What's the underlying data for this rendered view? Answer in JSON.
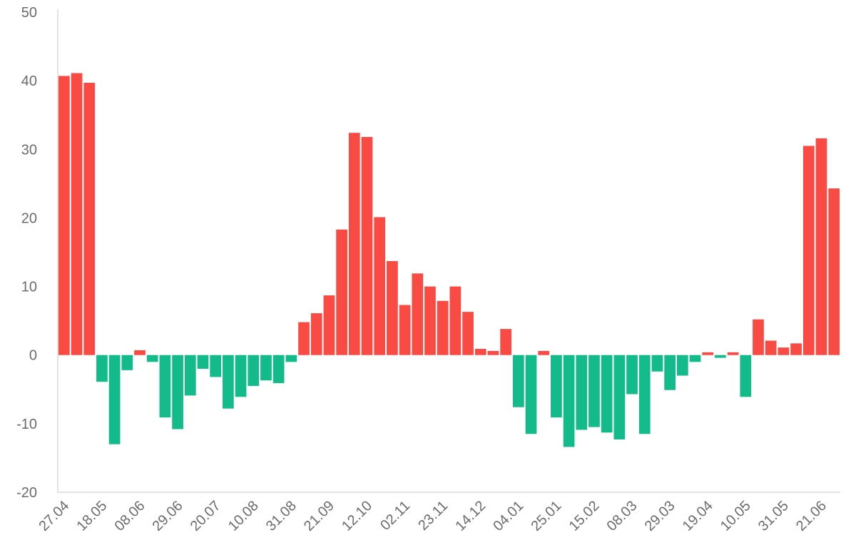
{
  "chart_data": {
    "type": "bar",
    "title": "",
    "xlabel": "",
    "ylabel": "",
    "ylim": [
      -20,
      50
    ],
    "yticks": [
      -20,
      -10,
      0,
      10,
      20,
      30,
      40,
      50
    ],
    "grid": false,
    "colors": {
      "positive": "#f94a43",
      "negative": "#13bb8a",
      "axis": "#d9d9d9",
      "text": "#6b6b6b"
    },
    "xtick_labels": [
      "27.04",
      "18.05",
      "08.06",
      "29.06",
      "20.07",
      "10.08",
      "31.08",
      "21.09",
      "12.10",
      "02.11",
      "23.11",
      "14.12",
      "04.01",
      "25.01",
      "15.02",
      "08.03",
      "29.03",
      "19.04",
      "10.05",
      "31.05",
      "21.06"
    ],
    "xtick_every": 3,
    "values": [
      40.7,
      41.1,
      39.7,
      -3.9,
      -13.0,
      -2.2,
      0.7,
      -1.0,
      -9.1,
      -10.8,
      -5.9,
      -2.0,
      -3.2,
      -7.8,
      -6.1,
      -4.5,
      -3.7,
      -4.1,
      -1.0,
      4.8,
      6.1,
      8.7,
      18.3,
      32.4,
      31.8,
      20.1,
      13.7,
      7.3,
      11.9,
      10.0,
      7.9,
      10.0,
      6.3,
      0.9,
      0.6,
      3.8,
      -7.6,
      -11.5,
      0.6,
      -9.1,
      -13.4,
      -10.9,
      -10.5,
      -11.3,
      -12.3,
      -5.7,
      -11.5,
      -2.4,
      -5.1,
      -3.0,
      -1.0,
      0.4,
      -0.4,
      0.4,
      -6.1,
      5.2,
      2.1,
      1.1,
      1.7,
      30.5,
      31.6,
      24.3
    ]
  }
}
